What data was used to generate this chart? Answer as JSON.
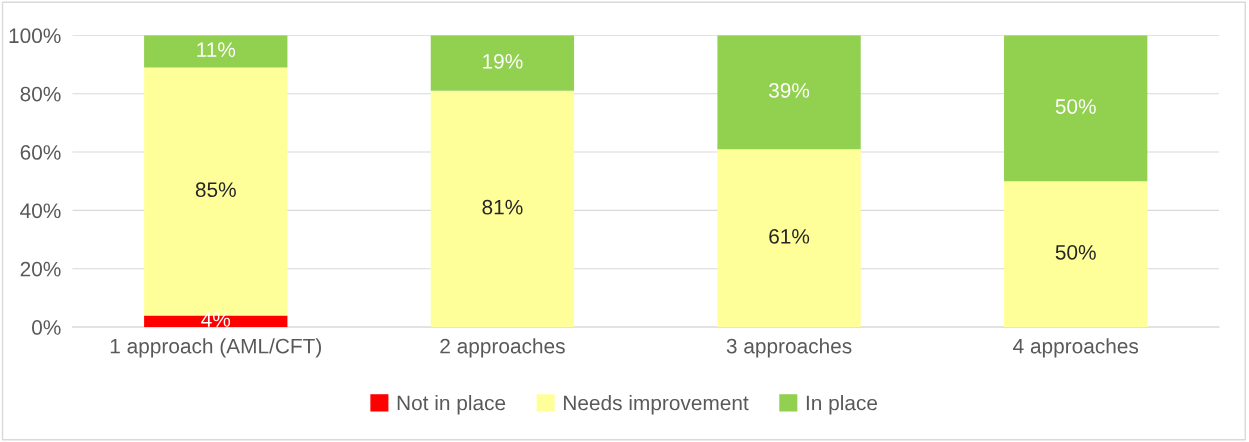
{
  "chart_data": {
    "type": "bar",
    "stacked": true,
    "categories": [
      "1 approach (AML/CFT)",
      "2 approaches",
      "3 approaches",
      "4 approaches"
    ],
    "series": [
      {
        "name": "Not in place",
        "color": "#ff0000",
        "values": [
          4,
          0,
          0,
          0
        ],
        "value_labels": [
          "4%",
          null,
          null,
          null
        ]
      },
      {
        "name": "Needs improvement",
        "color": "#ffff99",
        "values": [
          85,
          81,
          61,
          50
        ],
        "value_labels": [
          "85%",
          "81%",
          "61%",
          "50%"
        ]
      },
      {
        "name": "In place",
        "color": "#92d050",
        "values": [
          11,
          19,
          39,
          50
        ],
        "value_labels": [
          "11%",
          "19%",
          "39%",
          "50%"
        ]
      }
    ],
    "ylim": [
      0,
      100
    ],
    "yticks": [
      {
        "value": 0,
        "label": "0%"
      },
      {
        "value": 20,
        "label": "20%"
      },
      {
        "value": 40,
        "label": "40%"
      },
      {
        "value": 60,
        "label": "60%"
      },
      {
        "value": 80,
        "label": "80%"
      },
      {
        "value": 100,
        "label": "100%"
      }
    ],
    "grid": "y",
    "legend": "bottom"
  }
}
